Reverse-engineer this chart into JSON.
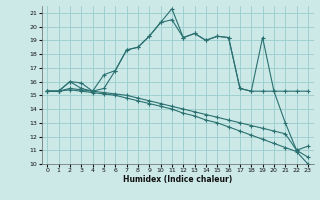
{
  "xlabel": "Humidex (Indice chaleur)",
  "bg_color": "#cce9e8",
  "grid_color": "#99cccc",
  "line_color": "#2a7070",
  "xlim": [
    -0.5,
    23.5
  ],
  "ylim": [
    10,
    21.5
  ],
  "yticks": [
    10,
    11,
    12,
    13,
    14,
    15,
    16,
    17,
    18,
    19,
    20,
    21
  ],
  "xticks": [
    0,
    1,
    2,
    3,
    4,
    5,
    6,
    7,
    8,
    9,
    10,
    11,
    12,
    13,
    14,
    15,
    16,
    17,
    18,
    19,
    20,
    21,
    22,
    23
  ],
  "series": [
    [
      15.3,
      15.3,
      16.0,
      15.9,
      15.3,
      16.5,
      16.8,
      18.3,
      18.5,
      19.3,
      20.3,
      21.3,
      19.2,
      19.5,
      19.0,
      19.3,
      19.2,
      15.5,
      15.3,
      19.2,
      15.3,
      15.3,
      15.3,
      15.3
    ],
    [
      15.3,
      15.3,
      16.0,
      15.5,
      15.3,
      15.5,
      16.8,
      18.3,
      18.5,
      19.3,
      20.3,
      20.5,
      19.2,
      19.5,
      19.0,
      19.3,
      19.2,
      15.5,
      15.3,
      15.3,
      15.3,
      13.0,
      11.0,
      11.3
    ],
    [
      15.3,
      15.3,
      15.5,
      15.4,
      15.3,
      15.2,
      15.1,
      15.0,
      14.8,
      14.6,
      14.4,
      14.2,
      14.0,
      13.8,
      13.6,
      13.4,
      13.2,
      13.0,
      12.8,
      12.6,
      12.4,
      12.2,
      11.0,
      10.5
    ],
    [
      15.3,
      15.3,
      15.4,
      15.3,
      15.2,
      15.1,
      15.0,
      14.8,
      14.6,
      14.4,
      14.2,
      14.0,
      13.7,
      13.5,
      13.2,
      13.0,
      12.7,
      12.4,
      12.1,
      11.8,
      11.5,
      11.2,
      10.9,
      10.0
    ]
  ]
}
